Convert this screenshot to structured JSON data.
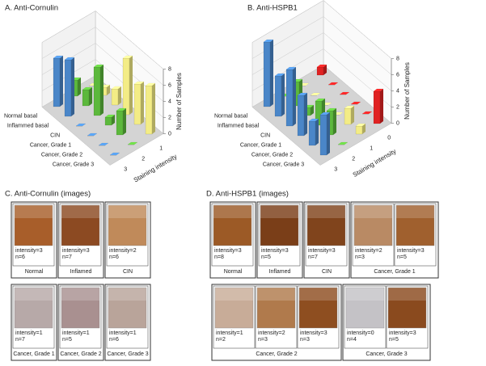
{
  "chart_data": [
    {
      "type": "bar3d",
      "title": "A. Anti-Cornulin",
      "categories": [
        "Normal basal",
        "Inflammed basal",
        "CIN",
        "Cancer, Grade 1",
        "Cancer, Grade 2",
        "Cancer, Grade 3"
      ],
      "series": [
        {
          "name": "3",
          "color": "#4a86c8",
          "values": [
            6,
            7,
            0,
            0,
            0,
            0
          ]
        },
        {
          "name": "2",
          "color": "#5cb83c",
          "values": [
            2,
            2,
            6,
            1,
            3,
            0
          ]
        },
        {
          "name": "1",
          "color": "#f3ec86",
          "values": [
            0,
            1,
            2,
            7,
            5,
            6
          ]
        }
      ],
      "ylim": [
        0,
        8
      ],
      "yticks": [
        0,
        2,
        4,
        6,
        8
      ],
      "ylabel": "Number of Samples",
      "xlabel": "Staining intensity",
      "grid": true
    },
    {
      "type": "bar3d",
      "title": "B. Anti-HSPB1",
      "categories": [
        "Normal basal",
        "Inflammed basal",
        "CIN",
        "Cancer, Grade 1",
        "Cancer, Grade 2",
        "Cancer, Grade 3"
      ],
      "series": [
        {
          "name": "3",
          "color": "#4a86c8",
          "values": [
            8,
            5,
            7,
            5,
            3,
            5
          ]
        },
        {
          "name": "2",
          "color": "#5cb83c",
          "values": [
            0,
            3,
            1,
            3,
            3,
            0
          ]
        },
        {
          "name": "1",
          "color": "#f3ec86",
          "values": [
            0,
            0,
            0,
            0,
            2,
            1
          ]
        },
        {
          "name": "0",
          "color": "#e02222",
          "values": [
            1,
            0,
            0,
            0,
            0,
            4
          ]
        }
      ],
      "ylim": [
        0,
        8
      ],
      "yticks": [
        0,
        2,
        4,
        6,
        8
      ],
      "ylabel": "Number of Samples",
      "xlabel": "Staining intensity",
      "grid": true
    }
  ],
  "panel_c": {
    "title": "C. Anti-Cornulin (images)",
    "rows": [
      [
        {
          "label": "Normal",
          "images": [
            {
              "intensity": "intensity=3",
              "n": "n=6",
              "color": "#a85e2a"
            }
          ]
        },
        {
          "label": "Inflamed",
          "images": [
            {
              "intensity": "intensity=3",
              "n": "n=7",
              "color": "#8c4a22"
            }
          ]
        },
        {
          "label": "CIN",
          "images": [
            {
              "intensity": "intensity=2",
              "n": "n=6",
              "color": "#c08a5a"
            }
          ]
        }
      ],
      [
        {
          "label": "Cancer, Grade 1",
          "images": [
            {
              "intensity": "intensity=1",
              "n": "n=7",
              "color": "#b7a9a8"
            }
          ]
        },
        {
          "label": "Cancer, Grade 2",
          "images": [
            {
              "intensity": "intensity=1",
              "n": "n=5",
              "color": "#a99090"
            }
          ]
        },
        {
          "label": "Cancer, Grade 3",
          "images": [
            {
              "intensity": "intensity=1",
              "n": "n=6",
              "color": "#b9a49a"
            }
          ]
        }
      ]
    ]
  },
  "panel_d": {
    "title": "D. Anti-HSPB1 (images)",
    "rows": [
      [
        {
          "label": "Normal",
          "images": [
            {
              "intensity": "intensity=3",
              "n": "n=8",
              "color": "#9c5a26"
            }
          ]
        },
        {
          "label": "Inflamed",
          "images": [
            {
              "intensity": "intensity=3",
              "n": "n=5",
              "color": "#7a3e18"
            }
          ]
        },
        {
          "label": "CIN",
          "images": [
            {
              "intensity": "intensity=3",
              "n": "n=7",
              "color": "#80441c"
            }
          ]
        },
        {
          "label": "Cancer, Grade 1",
          "images": [
            {
              "intensity": "intensity=2",
              "n": "n=3",
              "color": "#b98a64"
            },
            {
              "intensity": "intensity=3",
              "n": "n=5",
              "color": "#a0602e"
            }
          ]
        }
      ],
      [
        {
          "label": "Cancer, Grade 2",
          "images": [
            {
              "intensity": "intensity=1",
              "n": "n=2",
              "color": "#c8ac98"
            },
            {
              "intensity": "intensity=2",
              "n": "n=3",
              "color": "#b07a4c"
            },
            {
              "intensity": "intensity=3",
              "n": "n=3",
              "color": "#8e4e20"
            }
          ]
        },
        {
          "label": "Cancer, Grade 3",
          "images": [
            {
              "intensity": "intensity=0",
              "n": "n=4",
              "color": "#c4c2c6"
            },
            {
              "intensity": "intensity=3",
              "n": "n=5",
              "color": "#8a4a1e"
            }
          ]
        }
      ]
    ]
  }
}
